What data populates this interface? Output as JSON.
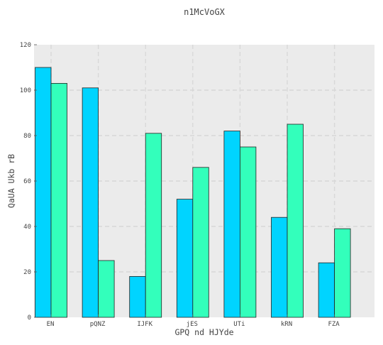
{
  "chart_data": {
    "type": "bar",
    "title": "n1McVoGX",
    "xlabel": "GPQ nd  HJYde",
    "ylabel": "QaUA Ukb rB",
    "categories": [
      "EN",
      "pQNZ",
      "IJFK",
      "jES",
      "UTi",
      "kRN",
      "FZA"
    ],
    "series": [
      {
        "values": [
          110,
          101,
          18,
          52,
          82,
          44,
          24
        ],
        "color": "#00d4ff"
      },
      {
        "values": [
          103,
          25,
          81,
          66,
          75,
          85,
          39
        ],
        "color": "#33ffbb"
      }
    ],
    "ylim": [
      0,
      120
    ],
    "yticks": [
      0,
      20,
      40,
      60,
      80,
      100,
      120
    ],
    "grid": true,
    "background": "#ebebeb"
  }
}
